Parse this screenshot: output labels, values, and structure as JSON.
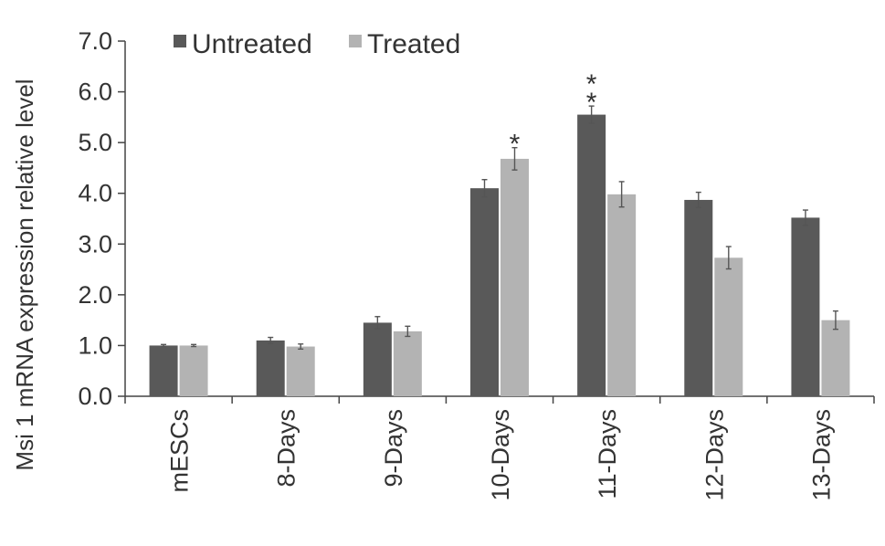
{
  "chart_data": {
    "type": "bar",
    "title": "",
    "xlabel": "",
    "ylabel": "Msi 1 mRNA expression relative level",
    "ylim": [
      0,
      7
    ],
    "yticks": [
      "0.0",
      "1.0",
      "2.0",
      "3.0",
      "4.0",
      "5.0",
      "6.0",
      "7.0"
    ],
    "categories": [
      "mESCs",
      "8-Days",
      "9-Days",
      "10-Days",
      "11-Days",
      "12-Days",
      "13-Days"
    ],
    "series": [
      {
        "name": "Untreated",
        "color": "#595959",
        "values": [
          1.0,
          1.1,
          1.45,
          4.1,
          5.55,
          3.87,
          3.52
        ],
        "errors": [
          0.02,
          0.06,
          0.12,
          0.17,
          0.17,
          0.15,
          0.15
        ]
      },
      {
        "name": "Treated",
        "color": "#b3b3b3",
        "values": [
          1.0,
          0.98,
          1.28,
          4.68,
          3.98,
          2.73,
          1.5
        ],
        "errors": [
          0.02,
          0.05,
          0.1,
          0.22,
          0.25,
          0.22,
          0.18
        ]
      }
    ],
    "annotations": [
      {
        "category": "10-Days",
        "series": "Treated",
        "text": "*"
      },
      {
        "category": "11-Days",
        "series": "Untreated",
        "text": "**"
      }
    ],
    "legend": {
      "position": "top-left"
    },
    "grid": false
  }
}
